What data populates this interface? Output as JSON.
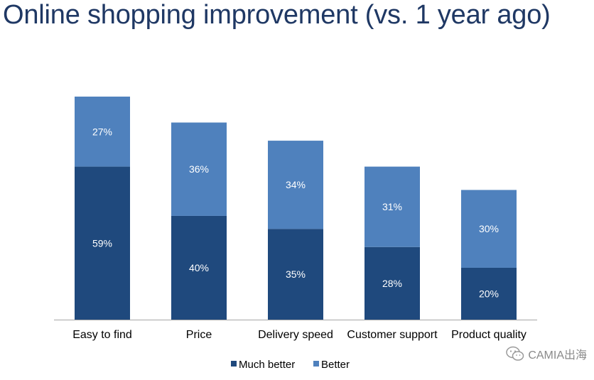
{
  "title": "Online shopping improvement (vs. 1 year ago)",
  "watermark": "CAMIA出海",
  "colors": {
    "much_better": "#1f497d",
    "better": "#4f81bd",
    "axis": "#a6a6a6",
    "label_text": "#ffffff",
    "tick_text": "#000000"
  },
  "chart_data": {
    "type": "bar",
    "stacked": true,
    "title": "Online shopping improvement (vs. 1 year ago)",
    "categories": [
      "Easy to find",
      "Price",
      "Delivery speed",
      "Customer support",
      "Product quality"
    ],
    "series": [
      {
        "name": "Much better",
        "values": [
          59,
          40,
          35,
          28,
          20
        ],
        "labels": [
          "59%",
          "40%",
          "35%",
          "28%",
          "20%"
        ],
        "color": "#1f497d"
      },
      {
        "name": "Better",
        "values": [
          27,
          36,
          34,
          31,
          30
        ],
        "labels": [
          "27%",
          "36%",
          "34%",
          "31%",
          "30%"
        ],
        "color": "#4f81bd"
      }
    ],
    "ylim": [
      0,
      86
    ],
    "legend": "bottom",
    "grid": false
  }
}
